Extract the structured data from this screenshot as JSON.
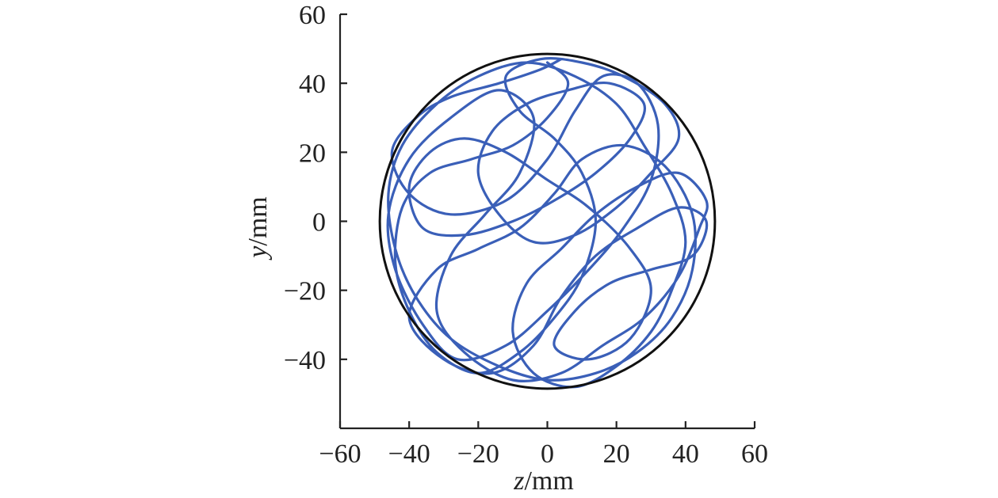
{
  "chart_data": {
    "type": "line",
    "xlabel": {
      "var": "z",
      "unit": "/mm"
    },
    "ylabel": {
      "var": "y",
      "unit": "/mm"
    },
    "xlim": [
      -60,
      60
    ],
    "ylim": [
      -60,
      60
    ],
    "xticks": [
      -60,
      -40,
      -20,
      0,
      20,
      40,
      60
    ],
    "yticks": [
      -40,
      -20,
      0,
      20,
      40,
      60
    ],
    "xtick_labels": [
      "−60",
      "−40",
      "−20",
      "0",
      "20",
      "40",
      "60"
    ],
    "ytick_labels": [
      "−40",
      "−20",
      "0",
      "20",
      "40",
      "60"
    ],
    "grid": false,
    "boundary": {
      "shape": "circle",
      "center": [
        0,
        0
      ],
      "radius": 48.5,
      "color": "#111111"
    },
    "trajectory": {
      "color": "#3a5fb8",
      "points": [
        [
          4,
          47
        ],
        [
          -2,
          44
        ],
        [
          -14,
          40
        ],
        [
          -28,
          36
        ],
        [
          -38,
          30
        ],
        [
          -45,
          20
        ],
        [
          -40,
          8
        ],
        [
          -28,
          2
        ],
        [
          -12,
          6
        ],
        [
          0,
          18
        ],
        [
          8,
          32
        ],
        [
          16,
          42
        ],
        [
          26,
          40
        ],
        [
          32,
          28
        ],
        [
          30,
          12
        ],
        [
          22,
          -2
        ],
        [
          12,
          -14
        ],
        [
          0,
          -26
        ],
        [
          -12,
          -36
        ],
        [
          -26,
          -40
        ],
        [
          -36,
          -30
        ],
        [
          -44,
          -14
        ],
        [
          -46,
          2
        ],
        [
          -40,
          18
        ],
        [
          -28,
          30
        ],
        [
          -14,
          38
        ],
        [
          -4,
          30
        ],
        [
          -8,
          14
        ],
        [
          -18,
          2
        ],
        [
          -28,
          -10
        ],
        [
          -32,
          -26
        ],
        [
          -24,
          -38
        ],
        [
          -10,
          -46
        ],
        [
          4,
          -44
        ],
        [
          16,
          -36
        ],
        [
          28,
          -28
        ],
        [
          38,
          -16
        ],
        [
          44,
          -2
        ],
        [
          46,
          6
        ],
        [
          38,
          14
        ],
        [
          26,
          10
        ],
        [
          14,
          2
        ],
        [
          4,
          -8
        ],
        [
          -6,
          -18
        ],
        [
          -10,
          -32
        ],
        [
          -4,
          -44
        ],
        [
          8,
          -48
        ],
        [
          20,
          -42
        ],
        [
          30,
          -32
        ],
        [
          36,
          -20
        ],
        [
          40,
          -6
        ],
        [
          36,
          8
        ],
        [
          28,
          22
        ],
        [
          20,
          34
        ],
        [
          8,
          42
        ],
        [
          -6,
          46
        ],
        [
          -20,
          42
        ],
        [
          -32,
          34
        ],
        [
          -42,
          22
        ],
        [
          -46,
          8
        ],
        [
          -44,
          -8
        ],
        [
          -38,
          -22
        ],
        [
          -28,
          -34
        ],
        [
          -14,
          -42
        ],
        [
          0,
          -46
        ],
        [
          14,
          -44
        ],
        [
          26,
          -38
        ],
        [
          36,
          -28
        ],
        [
          42,
          -14
        ],
        [
          42,
          2
        ],
        [
          34,
          16
        ],
        [
          22,
          22
        ],
        [
          10,
          18
        ],
        [
          2,
          8
        ],
        [
          -8,
          -2
        ],
        [
          -20,
          -8
        ],
        [
          -32,
          -14
        ],
        [
          -40,
          -28
        ],
        [
          -30,
          -40
        ],
        [
          -16,
          -44
        ],
        [
          -4,
          -36
        ],
        [
          4,
          -22
        ],
        [
          14,
          -10
        ],
        [
          26,
          -2
        ],
        [
          38,
          4
        ],
        [
          46,
          0
        ],
        [
          42,
          -10
        ],
        [
          30,
          -14
        ],
        [
          18,
          -18
        ],
        [
          8,
          -26
        ],
        [
          2,
          -36
        ],
        [
          12,
          -40
        ],
        [
          24,
          -34
        ],
        [
          30,
          -20
        ],
        [
          24,
          -8
        ],
        [
          12,
          4
        ],
        [
          0,
          12
        ],
        [
          -12,
          20
        ],
        [
          -24,
          24
        ],
        [
          -34,
          20
        ],
        [
          -40,
          10
        ],
        [
          -36,
          -2
        ],
        [
          -24,
          -4
        ],
        [
          -10,
          0
        ],
        [
          2,
          6
        ],
        [
          14,
          14
        ],
        [
          24,
          24
        ],
        [
          28,
          34
        ],
        [
          18,
          40
        ],
        [
          6,
          38
        ],
        [
          -6,
          34
        ],
        [
          -16,
          26
        ],
        [
          -20,
          14
        ],
        [
          -14,
          2
        ],
        [
          -4,
          -6
        ],
        [
          8,
          -4
        ],
        [
          20,
          4
        ],
        [
          30,
          14
        ],
        [
          38,
          24
        ],
        [
          34,
          34
        ],
        [
          22,
          42
        ],
        [
          10,
          46
        ],
        [
          -2,
          47
        ],
        [
          -12,
          42
        ],
        [
          -8,
          32
        ],
        [
          2,
          24
        ],
        [
          10,
          14
        ],
        [
          14,
          0
        ],
        [
          10,
          -16
        ],
        [
          2,
          -28
        ],
        [
          -8,
          -38
        ],
        [
          -20,
          -44
        ],
        [
          -32,
          -38
        ],
        [
          -40,
          -26
        ],
        [
          -44,
          -12
        ],
        [
          -42,
          4
        ],
        [
          -34,
          14
        ],
        [
          -22,
          18
        ],
        [
          -10,
          22
        ],
        [
          0,
          30
        ],
        [
          6,
          40
        ],
        [
          0,
          46
        ]
      ]
    }
  }
}
